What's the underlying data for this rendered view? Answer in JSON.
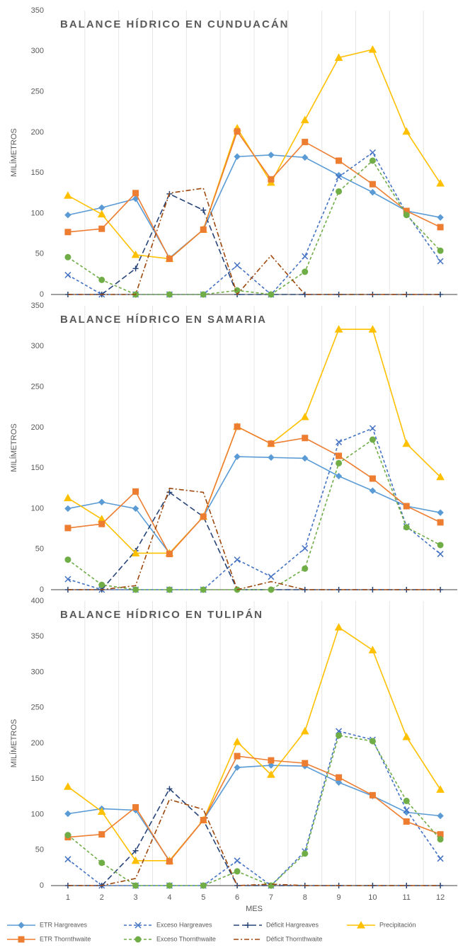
{
  "chart_data": [
    {
      "type": "line",
      "title": "BALANCE HÍDRICO EN CUNDUACÁN",
      "ylabel": "MILÍMETROS",
      "ylim": [
        0,
        350
      ],
      "yticks": [
        0,
        50,
        100,
        150,
        200,
        250,
        300,
        350
      ],
      "series": [
        {
          "name": "ETR Hargreaves",
          "color": "#5b9bd5",
          "style": "solid",
          "marker": "diamond",
          "values": [
            98,
            107,
            118,
            45,
            80,
            170,
            172,
            169,
            147,
            126,
            103,
            95
          ]
        },
        {
          "name": "Exceso Hargreaves",
          "color": "#4472c4",
          "style": "dashed",
          "marker": "x",
          "values": [
            24,
            0,
            0,
            0,
            0,
            36,
            0,
            47,
            145,
            175,
            100,
            41
          ]
        },
        {
          "name": "Déficit Hargreaves",
          "color": "#264478",
          "style": "longdash",
          "marker": "plus",
          "values": [
            0,
            0,
            32,
            124,
            104,
            0,
            0,
            0,
            0,
            0,
            0,
            0
          ]
        },
        {
          "name": "Precipitación",
          "color": "#ffc000",
          "style": "solid",
          "marker": "triangle",
          "values": [
            122,
            99,
            49,
            44,
            80,
            205,
            138,
            215,
            292,
            302,
            201,
            137
          ]
        },
        {
          "name": "ETR Thornthwaite",
          "color": "#ed7d31",
          "style": "solid",
          "marker": "square",
          "values": [
            77,
            81,
            125,
            44,
            80,
            201,
            142,
            188,
            165,
            136,
            103,
            83
          ]
        },
        {
          "name": "Exceso Thornthwaite",
          "color": "#70ad47",
          "style": "dashed",
          "marker": "circle",
          "values": [
            46,
            18,
            0,
            0,
            0,
            5,
            0,
            28,
            127,
            165,
            98,
            54
          ]
        },
        {
          "name": "Déficit Thornthwaite",
          "color": "#9e480e",
          "style": "dashdot",
          "marker": "none",
          "values": [
            0,
            0,
            0,
            125,
            131,
            0,
            48,
            0,
            0,
            0,
            0,
            0
          ]
        }
      ]
    },
    {
      "type": "line",
      "title": "BALANCE HÍDRICO EN SAMARIA",
      "ylabel": "MILÍMETROS",
      "ylim": [
        0,
        350
      ],
      "yticks": [
        0,
        50,
        100,
        150,
        200,
        250,
        300,
        350
      ],
      "series": [
        {
          "name": "ETR Hargreaves",
          "color": "#5b9bd5",
          "style": "solid",
          "marker": "diamond",
          "values": [
            100,
            108,
            100,
            45,
            90,
            164,
            163,
            162,
            140,
            122,
            103,
            95
          ]
        },
        {
          "name": "Exceso Hargreaves",
          "color": "#4472c4",
          "style": "dashed",
          "marker": "x",
          "values": [
            13,
            0,
            0,
            0,
            0,
            37,
            16,
            51,
            182,
            199,
            78,
            44
          ]
        },
        {
          "name": "Déficit Hargreaves",
          "color": "#264478",
          "style": "longdash",
          "marker": "plus",
          "values": [
            0,
            0,
            48,
            120,
            90,
            0,
            0,
            0,
            0,
            0,
            0,
            0
          ]
        },
        {
          "name": "Precipitación",
          "color": "#ffc000",
          "style": "solid",
          "marker": "triangle",
          "values": [
            113,
            87,
            45,
            45,
            90,
            201,
            180,
            213,
            321,
            321,
            180,
            139
          ]
        },
        {
          "name": "ETR Thornthwaite",
          "color": "#ed7d31",
          "style": "solid",
          "marker": "square",
          "values": [
            76,
            81,
            121,
            44,
            90,
            201,
            180,
            187,
            165,
            137,
            103,
            83
          ]
        },
        {
          "name": "Exceso Thornthwaite",
          "color": "#70ad47",
          "style": "dashed",
          "marker": "circle",
          "values": [
            37,
            6,
            0,
            0,
            0,
            0,
            0,
            26,
            156,
            185,
            77,
            55
          ]
        },
        {
          "name": "Déficit Thornthwaite",
          "color": "#9e480e",
          "style": "dashdot",
          "marker": "none",
          "values": [
            0,
            0,
            5,
            125,
            120,
            0,
            10,
            0,
            0,
            0,
            0,
            0
          ]
        }
      ]
    },
    {
      "type": "line",
      "title": "BALANCE HÍDRICO EN TULIPÁN",
      "ylabel": "MILÍMETROS",
      "xlabel": "MES",
      "categories": [
        "1",
        "2",
        "3",
        "4",
        "5",
        "6",
        "7",
        "8",
        "9",
        "10",
        "11",
        "12"
      ],
      "ylim": [
        0,
        400
      ],
      "yticks": [
        0,
        50,
        100,
        150,
        200,
        250,
        300,
        350,
        400
      ],
      "series": [
        {
          "name": "ETR Hargreaves",
          "color": "#5b9bd5",
          "style": "solid",
          "marker": "diamond",
          "values": [
            101,
            108,
            106,
            35,
            92,
            166,
            169,
            168,
            145,
            126,
            103,
            98
          ]
        },
        {
          "name": "Exceso Hargreaves",
          "color": "#4472c4",
          "style": "dashed",
          "marker": "x",
          "values": [
            37,
            0,
            0,
            0,
            0,
            35,
            0,
            48,
            217,
            205,
            106,
            38
          ]
        },
        {
          "name": "Déficit Hargreaves",
          "color": "#264478",
          "style": "longdash",
          "marker": "plus",
          "values": [
            0,
            0,
            49,
            136,
            92,
            0,
            0,
            0,
            0,
            0,
            0,
            0
          ]
        },
        {
          "name": "Precipitación",
          "color": "#ffc000",
          "style": "solid",
          "marker": "triangle",
          "values": [
            139,
            104,
            35,
            35,
            92,
            202,
            156,
            217,
            363,
            331,
            209,
            135
          ]
        },
        {
          "name": "ETR Thornthwaite",
          "color": "#ed7d31",
          "style": "solid",
          "marker": "square",
          "values": [
            68,
            72,
            110,
            34,
            92,
            182,
            176,
            172,
            152,
            127,
            90,
            72
          ]
        },
        {
          "name": "Exceso Thornthwaite",
          "color": "#70ad47",
          "style": "dashed",
          "marker": "circle",
          "values": [
            71,
            32,
            0,
            0,
            0,
            20,
            0,
            45,
            211,
            203,
            119,
            65
          ]
        },
        {
          "name": "Déficit Thornthwaite",
          "color": "#9e480e",
          "style": "dashdot",
          "marker": "none",
          "values": [
            0,
            0,
            10,
            121,
            107,
            0,
            2,
            0,
            0,
            0,
            0,
            0
          ]
        }
      ]
    }
  ]
}
